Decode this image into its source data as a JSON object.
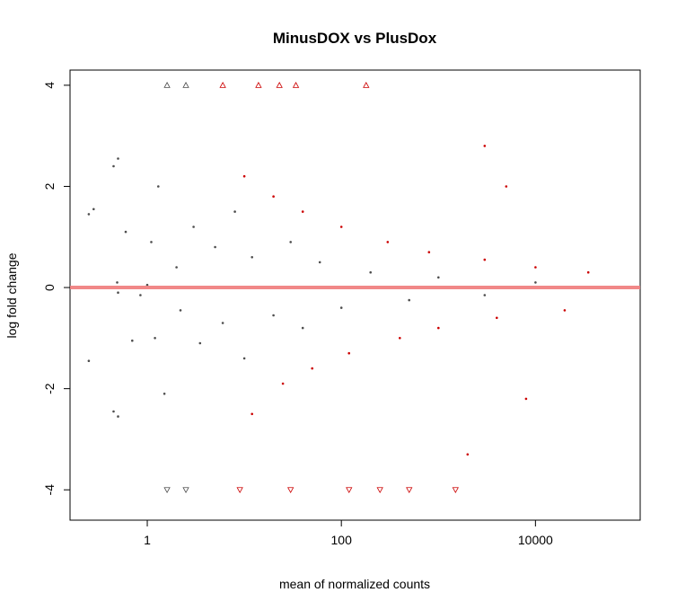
{
  "chart_data": {
    "type": "scatter",
    "title": "MinusDOX vs PlusDox",
    "xlabel": "mean of normalized counts",
    "ylabel": "log fold change",
    "x_scale": "log10",
    "xlim": [
      0.16,
      120000
    ],
    "ylim": [
      -4.6,
      4.3
    ],
    "x_ticks": [
      1,
      100,
      10000
    ],
    "x_tick_labels": [
      "1",
      "100",
      "10000"
    ],
    "y_ticks": [
      -4,
      -2,
      0,
      2,
      4
    ],
    "y_tick_labels": [
      "-4",
      "-2",
      "0",
      "2",
      "4"
    ],
    "grid": false,
    "legend": "none",
    "reference_line": {
      "y": 0,
      "color": "#f07c7c"
    },
    "colors": {
      "not_significant": "#4d4d4d",
      "significant": "#cc0000"
    },
    "series": [
      {
        "id": "not-significant",
        "points": [
          [
            0.25,
            1.45
          ],
          [
            0.28,
            1.55
          ],
          [
            0.25,
            -1.45
          ],
          [
            0.5,
            2.55
          ],
          [
            0.45,
            2.4
          ],
          [
            0.5,
            -0.1
          ],
          [
            0.49,
            0.1
          ],
          [
            0.45,
            -2.45
          ],
          [
            0.5,
            -2.55
          ],
          [
            0.6,
            1.1
          ],
          [
            0.7,
            -1.05
          ],
          [
            0.85,
            -0.15
          ],
          [
            1.0,
            0.05
          ],
          [
            1.1,
            0.9
          ],
          [
            1.2,
            -1.0
          ],
          [
            1.3,
            2.0
          ],
          [
            1.5,
            -2.1
          ],
          [
            2.0,
            0.4
          ],
          [
            2.2,
            -0.45
          ],
          [
            3.0,
            1.2
          ],
          [
            3.5,
            -1.1
          ],
          [
            5.0,
            0.8
          ],
          [
            6.0,
            -0.7
          ],
          [
            8.0,
            1.5
          ],
          [
            10.0,
            -1.4
          ],
          [
            12.0,
            0.6
          ],
          [
            20.0,
            -0.55
          ],
          [
            30.0,
            0.9
          ],
          [
            40.0,
            -0.8
          ],
          [
            60.0,
            0.5
          ],
          [
            100.0,
            -0.4
          ],
          [
            200.0,
            0.3
          ],
          [
            500.0,
            -0.25
          ],
          [
            1000.0,
            0.2
          ],
          [
            3000.0,
            -0.15
          ],
          [
            10000.0,
            0.1
          ]
        ],
        "values_clipped": [
          [
            1.6,
            4.0
          ],
          [
            2.5,
            4.0
          ],
          [
            1.6,
            -4.0
          ],
          [
            2.5,
            -4.0
          ]
        ]
      },
      {
        "id": "significant",
        "points": [
          [
            10.0,
            2.2
          ],
          [
            12.0,
            -2.5
          ],
          [
            20.0,
            1.8
          ],
          [
            25.0,
            -1.9
          ],
          [
            40.0,
            1.5
          ],
          [
            50.0,
            -1.6
          ],
          [
            100.0,
            1.2
          ],
          [
            120.0,
            -1.3
          ],
          [
            300.0,
            0.9
          ],
          [
            400.0,
            -1.0
          ],
          [
            800.0,
            0.7
          ],
          [
            1000.0,
            -0.8
          ],
          [
            3000.0,
            0.55
          ],
          [
            4000.0,
            -0.6
          ],
          [
            10000.0,
            0.4
          ],
          [
            20000.0,
            -0.45
          ],
          [
            35000.0,
            0.3
          ],
          [
            5000.0,
            2.0
          ],
          [
            8000.0,
            -2.2
          ],
          [
            2000.0,
            -3.3
          ],
          [
            3000.0,
            2.8
          ]
        ],
        "values_clipped": [
          [
            6.0,
            4.0
          ],
          [
            14.0,
            4.0
          ],
          [
            23.0,
            4.0
          ],
          [
            34.0,
            4.0
          ],
          [
            180.0,
            4.0
          ],
          [
            9.0,
            -4.0
          ],
          [
            30.0,
            -4.0
          ],
          [
            120.0,
            -4.0
          ],
          [
            250.0,
            -4.0
          ],
          [
            500.0,
            -4.0
          ],
          [
            1500.0,
            -4.0
          ]
        ]
      }
    ]
  }
}
